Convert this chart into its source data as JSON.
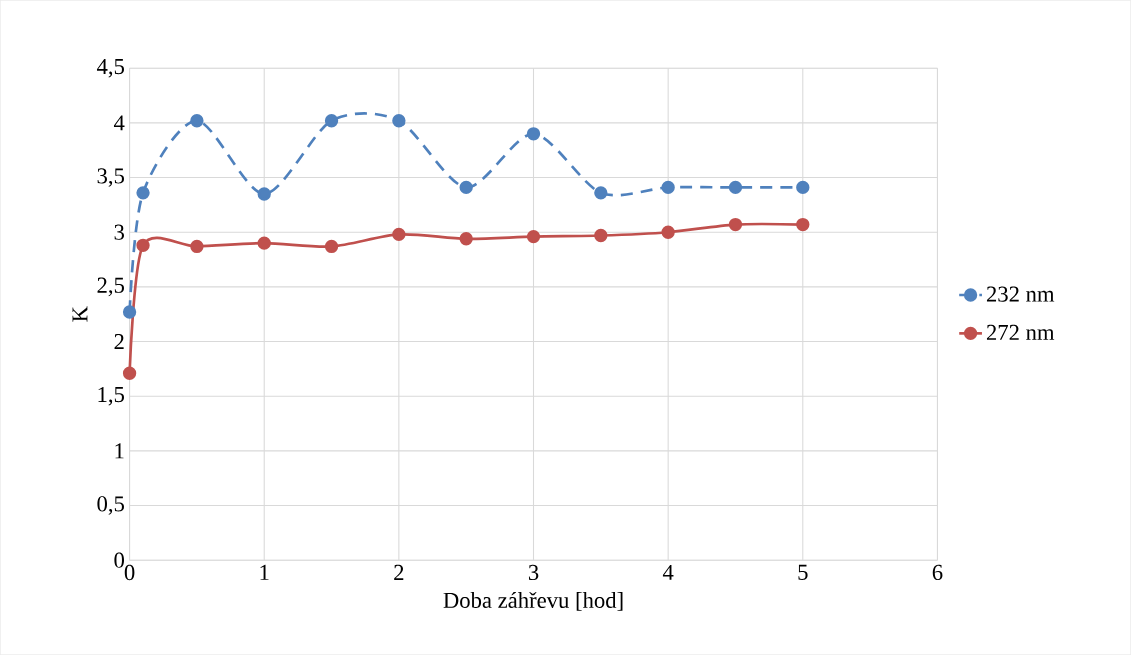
{
  "chart_data": {
    "type": "line",
    "xlabel": "Doba záhřevu [hod]",
    "ylabel": "K",
    "x": [
      0,
      0.1,
      0.5,
      1,
      1.5,
      2,
      2.5,
      3,
      3.5,
      4,
      4.5,
      5
    ],
    "series": [
      {
        "name": "232 nm",
        "color": "#4f81bd",
        "line_style": "dashed",
        "values": [
          2.27,
          3.36,
          4.02,
          3.35,
          4.02,
          4.02,
          3.41,
          3.9,
          3.36,
          3.41,
          3.41,
          3.41
        ]
      },
      {
        "name": "272 nm",
        "color": "#c0504d",
        "line_style": "solid",
        "values": [
          1.71,
          2.88,
          2.87,
          2.9,
          2.87,
          2.98,
          2.94,
          2.96,
          2.97,
          3.0,
          3.07,
          3.07
        ]
      }
    ],
    "xlim": [
      0,
      6
    ],
    "xticks": [
      0,
      1,
      2,
      3,
      4,
      5,
      6
    ],
    "ylim": [
      0,
      4.5
    ],
    "yticks": [
      0,
      {
        "value": 0.5,
        "label": "0,5"
      },
      1,
      {
        "value": 1.5,
        "label": "1,5"
      },
      2,
      {
        "value": 2.5,
        "label": "2,5"
      },
      3,
      {
        "value": 3.5,
        "label": "3,5"
      },
      4,
      {
        "value": 4.5,
        "label": "4,5"
      }
    ],
    "grid": true,
    "legend": "right",
    "marker": "circle"
  }
}
